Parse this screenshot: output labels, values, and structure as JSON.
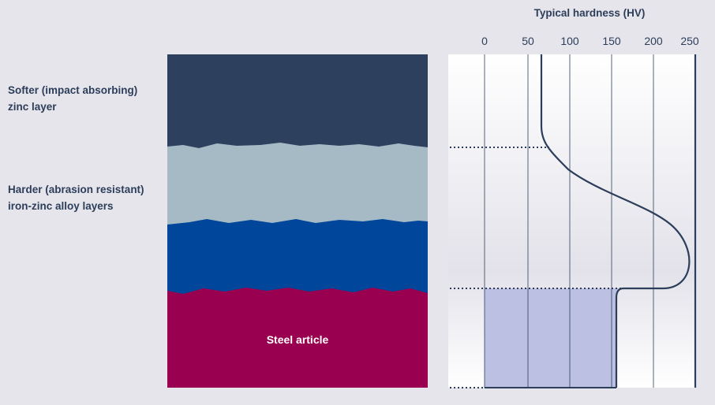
{
  "labels": {
    "soft_layer": "Softer (impact absorbing) zinc layer",
    "hard_layers": "Harder (abrasion resistant) iron-zinc alloy layers",
    "steel": "Steel article"
  },
  "chart": {
    "title": "Typical hardness (HV)",
    "ticks": [
      "0",
      "50",
      "100",
      "150",
      "200",
      "250"
    ],
    "tick_values": [
      0,
      50,
      100,
      150,
      200,
      250
    ]
  },
  "colors": {
    "background": "#e6e5ec",
    "zinc_layer": "#2d415e",
    "alloy_light": "#a6bac6",
    "alloy_dark": "#00479b",
    "steel": "#990050",
    "curve": "#2c3e5a",
    "steel_hardness_fill": "#bcc0e2"
  }
}
